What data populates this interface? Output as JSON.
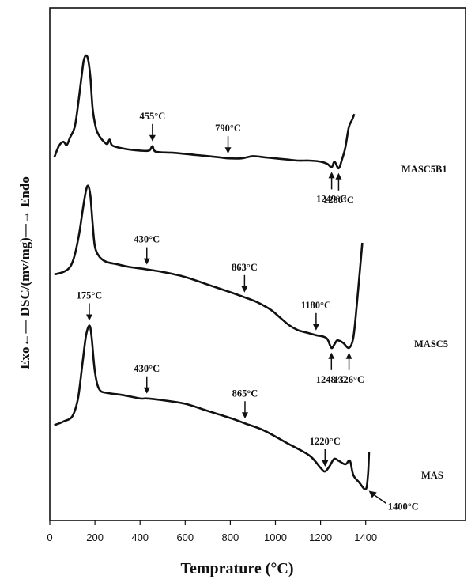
{
  "chart_data": {
    "type": "line",
    "xlabel": "Temprature (°C)",
    "ylabel": "Exo←— DSC/(mv/mg)—→ Endo",
    "xlim": [
      0,
      1450
    ],
    "xticks": [
      "0",
      "200",
      "400",
      "600",
      "800",
      "1000",
      "1200",
      "1400"
    ],
    "series": [
      {
        "name": "MASC5B1",
        "points": [
          [
            20,
            0.08
          ],
          [
            40,
            0.18
          ],
          [
            60,
            0.22
          ],
          [
            75,
            0.19
          ],
          [
            90,
            0.26
          ],
          [
            110,
            0.35
          ],
          [
            125,
            0.55
          ],
          [
            140,
            0.8
          ],
          [
            150,
            0.95
          ],
          [
            160,
            1.0
          ],
          [
            170,
            0.96
          ],
          [
            180,
            0.8
          ],
          [
            190,
            0.52
          ],
          [
            205,
            0.34
          ],
          [
            220,
            0.27
          ],
          [
            240,
            0.22
          ],
          [
            255,
            0.2
          ],
          [
            265,
            0.24
          ],
          [
            275,
            0.19
          ],
          [
            300,
            0.17
          ],
          [
            350,
            0.15
          ],
          [
            400,
            0.14
          ],
          [
            440,
            0.14
          ],
          [
            455,
            0.18
          ],
          [
            470,
            0.13
          ],
          [
            550,
            0.12
          ],
          [
            650,
            0.1
          ],
          [
            750,
            0.08
          ],
          [
            790,
            0.07
          ],
          [
            850,
            0.07
          ],
          [
            900,
            0.09
          ],
          [
            950,
            0.08
          ],
          [
            1000,
            0.07
          ],
          [
            1050,
            0.06
          ],
          [
            1100,
            0.05
          ],
          [
            1150,
            0.05
          ],
          [
            1200,
            0.04
          ],
          [
            1230,
            0.02
          ],
          [
            1249,
            -0.01
          ],
          [
            1262,
            0.04
          ],
          [
            1280,
            -0.02
          ],
          [
            1295,
            0.06
          ],
          [
            1310,
            0.17
          ],
          [
            1325,
            0.35
          ],
          [
            1340,
            0.42
          ],
          [
            1350,
            0.47
          ]
        ],
        "annotations": [
          {
            "x": 455,
            "text": "455°C",
            "dir": "down"
          },
          {
            "x": 790,
            "text": "790°C",
            "dir": "down"
          },
          {
            "x": 1249,
            "text": "1249°C",
            "dir": "up"
          },
          {
            "x": 1280,
            "text": "1280°C",
            "dir": "up"
          }
        ]
      },
      {
        "name": "MASC5",
        "points": [
          [
            20,
            0.3
          ],
          [
            60,
            0.32
          ],
          [
            90,
            0.36
          ],
          [
            110,
            0.45
          ],
          [
            130,
            0.62
          ],
          [
            145,
            0.8
          ],
          [
            160,
            0.96
          ],
          [
            170,
            1.0
          ],
          [
            180,
            0.92
          ],
          [
            190,
            0.7
          ],
          [
            200,
            0.52
          ],
          [
            220,
            0.44
          ],
          [
            250,
            0.4
          ],
          [
            300,
            0.38
          ],
          [
            350,
            0.36
          ],
          [
            430,
            0.34
          ],
          [
            500,
            0.32
          ],
          [
            600,
            0.28
          ],
          [
            700,
            0.22
          ],
          [
            800,
            0.16
          ],
          [
            863,
            0.12
          ],
          [
            920,
            0.08
          ],
          [
            980,
            0.02
          ],
          [
            1020,
            -0.04
          ],
          [
            1060,
            -0.1
          ],
          [
            1100,
            -0.14
          ],
          [
            1140,
            -0.16
          ],
          [
            1180,
            -0.18
          ],
          [
            1210,
            -0.19
          ],
          [
            1230,
            -0.21
          ],
          [
            1248,
            -0.28
          ],
          [
            1262,
            -0.25
          ],
          [
            1275,
            -0.22
          ],
          [
            1300,
            -0.24
          ],
          [
            1326,
            -0.28
          ],
          [
            1345,
            -0.2
          ],
          [
            1360,
            0.05
          ],
          [
            1375,
            0.35
          ],
          [
            1385,
            0.55
          ]
        ],
        "annotations": [
          {
            "x": 430,
            "text": "430°C",
            "dir": "down"
          },
          {
            "x": 863,
            "text": "863°C",
            "dir": "down"
          },
          {
            "x": 1180,
            "text": "1180°C",
            "dir": "down"
          },
          {
            "x": 1248,
            "text": "1248°C",
            "dir": "up"
          },
          {
            "x": 1326,
            "text": "1326°C",
            "dir": "up"
          }
        ]
      },
      {
        "name": "MAS",
        "points": [
          [
            20,
            0.1
          ],
          [
            60,
            0.12
          ],
          [
            100,
            0.15
          ],
          [
            125,
            0.25
          ],
          [
            145,
            0.45
          ],
          [
            160,
            0.6
          ],
          [
            175,
            0.66
          ],
          [
            185,
            0.6
          ],
          [
            200,
            0.4
          ],
          [
            220,
            0.3
          ],
          [
            260,
            0.28
          ],
          [
            320,
            0.27
          ],
          [
            400,
            0.25
          ],
          [
            430,
            0.25
          ],
          [
            500,
            0.24
          ],
          [
            600,
            0.22
          ],
          [
            700,
            0.18
          ],
          [
            800,
            0.14
          ],
          [
            865,
            0.11
          ],
          [
            950,
            0.07
          ],
          [
            1050,
            0.0
          ],
          [
            1150,
            -0.07
          ],
          [
            1200,
            -0.14
          ],
          [
            1220,
            -0.16
          ],
          [
            1240,
            -0.13
          ],
          [
            1260,
            -0.09
          ],
          [
            1280,
            -0.1
          ],
          [
            1310,
            -0.12
          ],
          [
            1330,
            -0.1
          ],
          [
            1345,
            -0.18
          ],
          [
            1370,
            -0.22
          ],
          [
            1400,
            -0.26
          ],
          [
            1410,
            -0.18
          ],
          [
            1415,
            -0.05
          ]
        ],
        "annotations": [
          {
            "x": 175,
            "text": "175°C",
            "dir": "down"
          },
          {
            "x": 430,
            "text": "430°C",
            "dir": "down"
          },
          {
            "x": 865,
            "text": "865°C",
            "dir": "down"
          },
          {
            "x": 1220,
            "text": "1220°C",
            "dir": "down"
          },
          {
            "x": 1400,
            "text": "1400°C",
            "dir": "diag"
          }
        ]
      }
    ]
  }
}
